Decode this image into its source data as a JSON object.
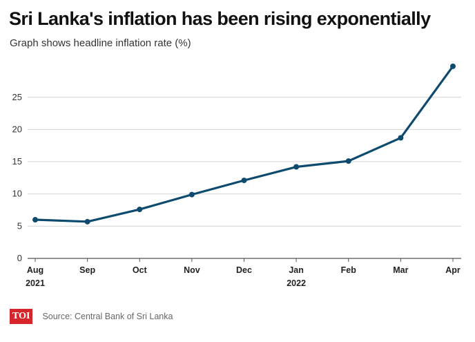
{
  "title": "Sri Lanka's inflation has been rising exponentially",
  "subtitle": "Graph shows headline inflation rate (%)",
  "logo": "TOI",
  "source": "Source: Central Bank of Sri Lanka",
  "colors": {
    "line": "#0d4a6e",
    "grid": "#d4d4d4",
    "logo": "#d7262b"
  },
  "chart_data": {
    "type": "line",
    "title": "Sri Lanka's inflation has been rising exponentially",
    "subtitle": "Graph shows headline inflation rate (%)",
    "xlabel": "",
    "ylabel": "",
    "categories": [
      "Aug 2021",
      "Sep",
      "Oct",
      "Nov",
      "Dec",
      "Jan 2022",
      "Feb",
      "Mar",
      "Apr"
    ],
    "category_labels": [
      [
        "Aug",
        "2021"
      ],
      [
        "Sep"
      ],
      [
        "Oct"
      ],
      [
        "Nov"
      ],
      [
        "Dec"
      ],
      [
        "Jan",
        "2022"
      ],
      [
        "Feb"
      ],
      [
        "Mar"
      ],
      [
        "Apr"
      ]
    ],
    "series": [
      {
        "values": [
          6.0,
          5.7,
          7.6,
          9.9,
          12.1,
          14.2,
          15.1,
          18.7,
          29.8
        ]
      }
    ],
    "yticks": [
      0,
      5,
      10,
      15,
      20,
      25
    ],
    "ylim": [
      0,
      30
    ],
    "grid": true,
    "legend": "none"
  }
}
